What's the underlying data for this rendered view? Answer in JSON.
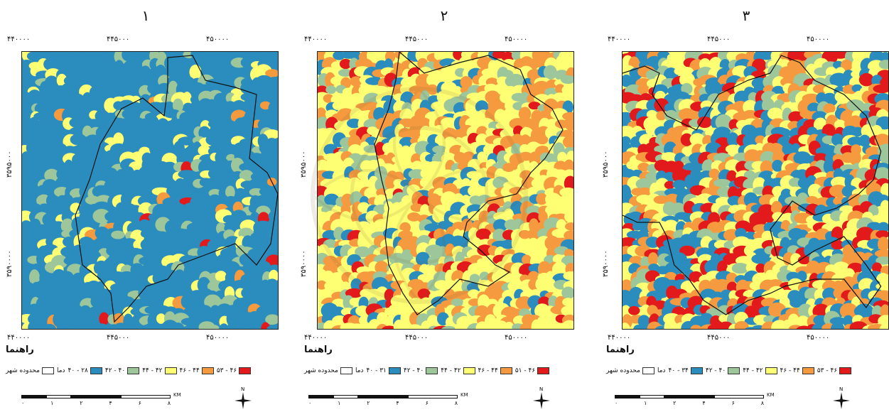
{
  "panels": [
    {
      "number": "١",
      "x_ticks_top": [
        "۴۴۰۰۰۰",
        "۴۴۵۰۰۰",
        "۴۵۰۰۰۰"
      ],
      "x_ticks_bottom": [
        "۴۴۰۰۰۰",
        "۴۴۵۰۰۰",
        "۴۵۰۰۰۰"
      ],
      "y_ticks_left": [
        "۳۶۰۰۰۰۰",
        "۳۵۹۵۰۰۰",
        "۳۵۹۰۰۰۰"
      ],
      "legend_title": "راهنما",
      "boundary_label": "محدوده شهر",
      "temp_label": "دما",
      "classes": [
        {
          "label": "۲۸ - ۴۰",
          "color": "#2b8cbe"
        },
        {
          "label": "۴۰ - ۴۲",
          "color": "#9dc79a"
        },
        {
          "label": "۴۲ - ۴۴",
          "color": "#ffff73"
        },
        {
          "label": "۴۴ - ۴۶",
          "color": "#f59a3e"
        },
        {
          "label": "۴۶ - ۵۳",
          "color": "#e31a1c"
        }
      ],
      "coverage": {
        "blue": 0.78,
        "green": 0.1,
        "yellow": 0.09,
        "orange": 0.02,
        "red": 0.01
      }
    },
    {
      "number": "٢",
      "x_ticks_top": [
        "۴۴۰۰۰۰",
        "۴۴۵۰۰۰",
        "۴۵۰۰۰۰"
      ],
      "x_ticks_bottom": [
        "۴۴۰۰۰۰",
        "۴۴۵۰۰۰",
        "۴۵۰۰۰۰"
      ],
      "y_ticks_left": [
        "۳۶۰۰۰۰۰",
        "۳۵۹۵۰۰۰",
        "۳۵۹۰۰۰۰"
      ],
      "legend_title": "راهنما",
      "boundary_label": "محدوده شهر",
      "temp_label": "دما",
      "classes": [
        {
          "label": "۳۱ - ۴۰",
          "color": "#2b8cbe"
        },
        {
          "label": "۴۰ - ۴۲",
          "color": "#9dc79a"
        },
        {
          "label": "۴۲ - ۴۴",
          "color": "#ffff73"
        },
        {
          "label": "۴۴ - ۴۶",
          "color": "#f59a3e"
        },
        {
          "label": "۴۶ - ۵۱",
          "color": "#e31a1c"
        }
      ],
      "coverage": {
        "blue": 0.12,
        "green": 0.13,
        "yellow": 0.42,
        "orange": 0.28,
        "red": 0.05
      }
    },
    {
      "number": "٣",
      "x_ticks_top": [
        "۴۴۰۰۰۰",
        "۴۴۵۰۰۰",
        "۴۵۰۰۰۰"
      ],
      "x_ticks_bottom": [
        "۴۴۰۰۰۰",
        "۴۴۵۰۰۰",
        "۴۵۰۰۰۰"
      ],
      "y_ticks_left": [
        "۳۶۰۰۰۰۰",
        "۳۵۹۵۰۰۰",
        "۳۵۹۰۰۰۰"
      ],
      "legend_title": "راهنما",
      "boundary_label": "محدوده شهر",
      "temp_label": "دما",
      "classes": [
        {
          "label": "۳۴ - ۴۰",
          "color": "#2b8cbe"
        },
        {
          "label": "۴۰ - ۴۲",
          "color": "#9dc79a"
        },
        {
          "label": "۴۲ - ۴۴",
          "color": "#ffff73"
        },
        {
          "label": "۴۴ - ۴۶",
          "color": "#f59a3e"
        },
        {
          "label": "۴۶ - ۵۳",
          "color": "#e31a1c"
        }
      ],
      "coverage": {
        "blue": 0.3,
        "green": 0.12,
        "yellow": 0.25,
        "orange": 0.2,
        "red": 0.13
      }
    }
  ],
  "scale": {
    "unit": "KM",
    "labels": [
      "۰",
      "۱",
      "۲",
      "۴",
      "۶",
      "۸"
    ]
  },
  "north_label": "N"
}
